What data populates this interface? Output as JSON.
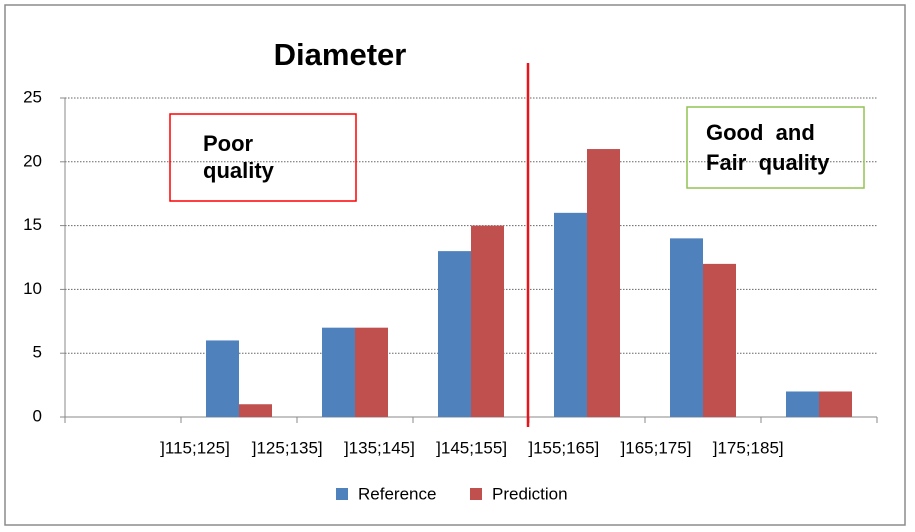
{
  "chart_data": {
    "type": "bar",
    "title": "Diameter",
    "categories": [
      "]115;125]",
      "]125;135]",
      "]135;145]",
      "]145;155]",
      "]155;165]",
      "]165;175]",
      "]175;185]"
    ],
    "series": [
      {
        "name": "Reference",
        "color": "#4f81bd",
        "values": [
          0,
          6,
          7,
          13,
          16,
          14,
          2
        ]
      },
      {
        "name": "Prediction",
        "color": "#c0504d",
        "values": [
          0,
          1,
          7,
          15,
          21,
          12,
          2
        ]
      }
    ],
    "ylim": [
      0,
      25
    ],
    "yticks": [
      0,
      5,
      10,
      15,
      20,
      25
    ],
    "grid": true,
    "legend": "bottom",
    "annotations": [
      {
        "text": [
          "Poor",
          "quality"
        ],
        "color": "#ff0000"
      },
      {
        "text": [
          "Good  and",
          "Fair  quality"
        ],
        "color": "#92c353"
      }
    ]
  }
}
